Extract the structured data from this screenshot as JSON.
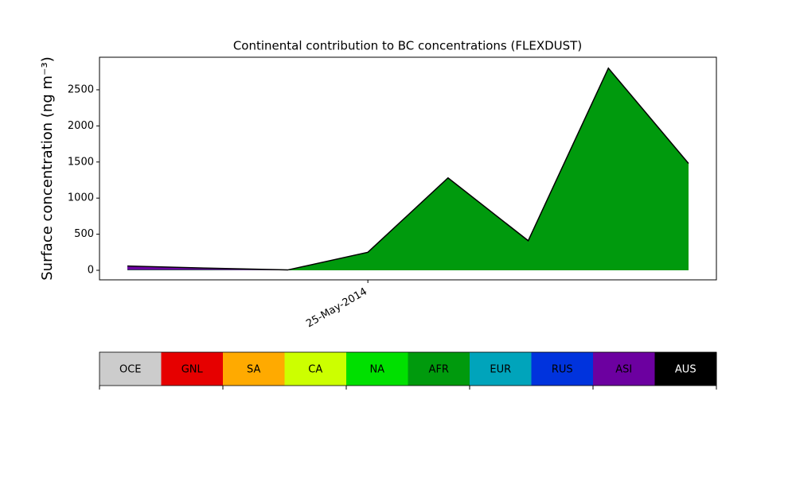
{
  "chart_data": {
    "type": "stacked_area",
    "title": "Continental contribution to BC concentrations (FLEXDUST)",
    "y_label": "Surface concentration (ng m⁻³)",
    "categories": [
      null,
      null,
      null,
      "25-May-2014",
      null,
      null,
      null,
      null
    ],
    "ylim": [
      -132,
      2951
    ],
    "yticks": [
      0,
      500,
      1000,
      1500,
      2000,
      2500
    ],
    "outline_color": "#000000",
    "series": [
      {
        "name": "OCE",
        "color": "#cccccc",
        "values": [
          0,
          0,
          0,
          0,
          0,
          0,
          0,
          0
        ]
      },
      {
        "name": "GNL",
        "color": "#e60000",
        "values": [
          0,
          0,
          0,
          0,
          0,
          0,
          0,
          0
        ]
      },
      {
        "name": "SA",
        "color": "#ffaa00",
        "values": [
          0,
          0,
          0,
          0,
          0,
          0,
          0,
          0
        ]
      },
      {
        "name": "CA",
        "color": "#ccff00",
        "values": [
          0,
          0,
          0,
          0,
          0,
          0,
          0,
          0
        ]
      },
      {
        "name": "NA",
        "color": "#00e000",
        "values": [
          0,
          0,
          0,
          0,
          0,
          0,
          0,
          0
        ]
      },
      {
        "name": "AFR",
        "color": "#009a0d",
        "values": [
          5,
          5,
          2,
          250,
          1280,
          410,
          2800,
          1480
        ]
      },
      {
        "name": "EUR",
        "color": "#00a4bb",
        "values": [
          0,
          0,
          0,
          0,
          0,
          0,
          0,
          0
        ]
      },
      {
        "name": "RUS",
        "color": "#0033dd",
        "values": [
          0,
          0,
          0,
          0,
          0,
          0,
          0,
          0
        ]
      },
      {
        "name": "ASI",
        "color": "#6c00a0",
        "values": [
          55,
          25,
          3,
          0,
          0,
          0,
          0,
          0
        ]
      },
      {
        "name": "AUS",
        "color": "#000000",
        "values": [
          0,
          0,
          0,
          0,
          0,
          0,
          0,
          0
        ]
      }
    ]
  }
}
